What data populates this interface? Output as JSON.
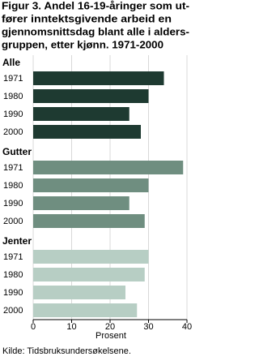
{
  "chart_data": {
    "type": "bar",
    "orientation": "horizontal",
    "title": [
      "Figur 3. Andel 16-19-åringer som ut-",
      "fører inntektsgivende arbeid en",
      "gjennomsnittsdag blant alle i alders-",
      "gruppen, etter kjønn. 1971-2000"
    ],
    "groups": [
      {
        "name": "Alle",
        "color": "#1e3a31",
        "categories": [
          "1971",
          "1980",
          "1990",
          "2000"
        ],
        "values": [
          34,
          30,
          25,
          28
        ]
      },
      {
        "name": "Gutter",
        "color": "#6f8e80",
        "categories": [
          "1971",
          "1980",
          "1990",
          "2000"
        ],
        "values": [
          39,
          30,
          25,
          29
        ]
      },
      {
        "name": "Jenter",
        "color": "#b7cec4",
        "categories": [
          "1971",
          "1980",
          "1990",
          "2000"
        ],
        "values": [
          30,
          29,
          24,
          27
        ]
      }
    ],
    "xlim": [
      0,
      40
    ],
    "xticks": [
      0,
      10,
      20,
      30,
      40
    ],
    "grid": true,
    "xlabel": "Prosent",
    "source": "Kilde: Tidsbruksundersøkelsene."
  }
}
